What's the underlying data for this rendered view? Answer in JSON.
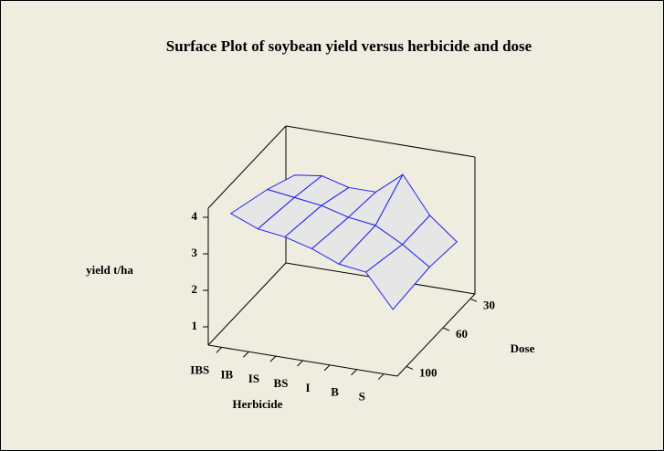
{
  "chart_data": {
    "type": "surface",
    "title": "Surface Plot of soybean yield versus herbicide and dose",
    "xlabel": "Herbicide",
    "ylabel": "Dose",
    "zlabel": "yield t/ha",
    "categories": [
      "IBS",
      "IB",
      "IS",
      "BS",
      "I",
      "B",
      "S"
    ],
    "dose": [
      30,
      60,
      100
    ],
    "values": [
      [
        3.1,
        3.2,
        3.0,
        3.0,
        3.6,
        2.6,
        2.0
      ],
      [
        3.5,
        3.4,
        3.3,
        3.1,
        3.0,
        2.6,
        2.1
      ],
      [
        3.9,
        3.6,
        3.5,
        3.3,
        3.0,
        2.9,
        2.0
      ]
    ],
    "ylim": [
      110,
      25
    ],
    "yticks": [
      30,
      60,
      100
    ],
    "zlim": [
      0.5,
      4.25
    ],
    "zticks": [
      1,
      2,
      3,
      4
    ],
    "fill": "#e6e6e6",
    "color": "#2020ee"
  }
}
